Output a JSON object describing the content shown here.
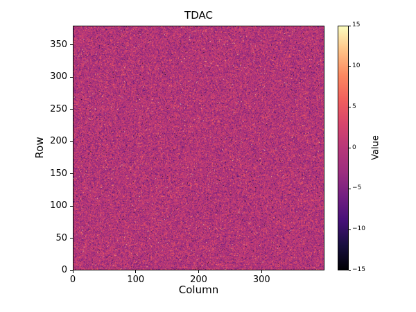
{
  "figure": {
    "background_color": "#ffffff",
    "text_color": "#000000",
    "spine_color": "#000000"
  },
  "chart_data": {
    "type": "heatmap",
    "title": "TDAC",
    "xlabel": "Column",
    "ylabel": "Row",
    "x_range": [
      0,
      400
    ],
    "y_range": [
      0,
      380
    ],
    "x_ticks": [
      0,
      100,
      200,
      300
    ],
    "y_ticks": [
      0,
      50,
      100,
      150,
      200,
      250,
      300,
      350
    ],
    "grid": false,
    "legend": "none",
    "colormap": "magma",
    "colormap_stops": [
      [
        0.0,
        "#000004"
      ],
      [
        0.1,
        "#180f3e"
      ],
      [
        0.2,
        "#451077"
      ],
      [
        0.3,
        "#721f81"
      ],
      [
        0.4,
        "#9c2e7f"
      ],
      [
        0.5,
        "#b73779"
      ],
      [
        0.6,
        "#d8456c"
      ],
      [
        0.7,
        "#f1605d"
      ],
      [
        0.8,
        "#fc8961"
      ],
      [
        0.9,
        "#fec287"
      ],
      [
        1.0,
        "#fcfdbf"
      ]
    ],
    "colorbar": {
      "label": "Value",
      "position": "right",
      "vmin": -15,
      "vmax": 15,
      "ticks": [
        15,
        10,
        5,
        0,
        -5,
        -10,
        -15
      ],
      "tick_labels": [
        "15",
        "10",
        "5",
        "0",
        "−5",
        "−10",
        "−15"
      ]
    },
    "grid_size": {
      "cols": 400,
      "rows": 380
    },
    "values_summary": "Dense per-pixel random noise centered near 0 (magenta-purple midtone of the magma colormap), evenly speckled with brighter pink/orange/white points and sparse dark/black points spanning the full −15 to +15 range; no large-scale spatial structure.",
    "noise": {
      "mean": -0.5,
      "std": 3.2,
      "outlier_fraction": 0.02,
      "seed": 42
    }
  }
}
